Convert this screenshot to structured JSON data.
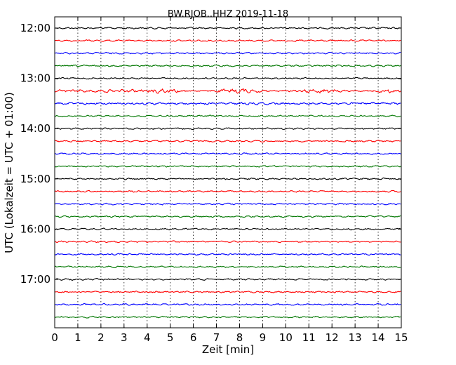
{
  "chart_data": {
    "type": "line",
    "title": "BW.RJOB..HHZ 2019-11-18",
    "xlabel": "Zeit  [min]",
    "ylabel": "UTC (Lokalzeit = UTC + 01:00)",
    "xlim": [
      0,
      15
    ],
    "x_ticks": [
      "0",
      "1",
      "2",
      "3",
      "4",
      "5",
      "6",
      "7",
      "8",
      "9",
      "10",
      "11",
      "12",
      "13",
      "14",
      "15"
    ],
    "y_tick_labels": [
      "12:00",
      "13:00",
      "14:00",
      "15:00",
      "16:00",
      "17:00"
    ],
    "grid": "vertical-dotted",
    "trace_start_utc": "12:00",
    "trace_interval_min": 15,
    "trace_colors": [
      "#000000",
      "#ff0000",
      "#0000ff",
      "#007700"
    ],
    "trace_count": 24
  }
}
